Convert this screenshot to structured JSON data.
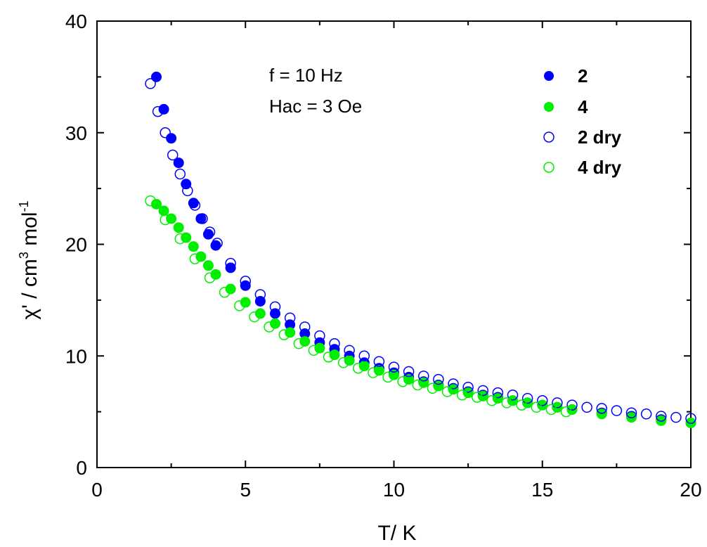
{
  "chart_data": {
    "type": "scatter",
    "xlabel": "T/ K",
    "ylabel_main": "χ' / cm",
    "ylabel_sup1": "3",
    "ylabel_mid": " mol",
    "ylabel_sup2": "-1",
    "xlim": [
      0,
      20
    ],
    "ylim": [
      0,
      40
    ],
    "xticks": [
      0,
      5,
      10,
      15,
      20
    ],
    "yticks": [
      0,
      10,
      20,
      30,
      40
    ],
    "grid": false,
    "legend_position": "top-right",
    "annotations": [
      "f = 10 Hz",
      "Hac = 3 Oe"
    ],
    "series": [
      {
        "name": "2",
        "color": "#0000ff",
        "marker": "filled-circle",
        "x": [
          2.0,
          2.25,
          2.5,
          2.75,
          3.0,
          3.25,
          3.5,
          3.75,
          4.0,
          4.5,
          5.0,
          5.5,
          6.0,
          6.5,
          7.0,
          7.5,
          8.0,
          8.5,
          9.0,
          9.5,
          10.0,
          10.5,
          11.0,
          11.5,
          12.0,
          12.5,
          13.0,
          13.5,
          14.0,
          14.5,
          15.0,
          15.5,
          16.0,
          17.0,
          18.0,
          19.0,
          20.0
        ],
        "y": [
          35.0,
          32.1,
          29.5,
          27.3,
          25.4,
          23.7,
          22.3,
          20.9,
          19.9,
          17.9,
          16.3,
          14.9,
          13.8,
          12.8,
          12.0,
          11.2,
          10.6,
          10.0,
          9.4,
          8.9,
          8.5,
          8.1,
          7.7,
          7.4,
          7.1,
          6.8,
          6.5,
          6.3,
          6.0,
          5.8,
          5.6,
          5.4,
          5.2,
          4.9,
          4.6,
          4.3,
          4.0
        ]
      },
      {
        "name": "4",
        "color": "#00ee00",
        "marker": "filled-circle",
        "x": [
          2.0,
          2.25,
          2.5,
          2.75,
          3.0,
          3.25,
          3.5,
          3.75,
          4.0,
          4.5,
          5.0,
          5.5,
          6.0,
          6.5,
          7.0,
          7.5,
          8.0,
          8.5,
          9.0,
          9.5,
          10.0,
          10.5,
          11.0,
          11.5,
          12.0,
          12.5,
          13.0,
          13.5,
          14.0,
          14.5,
          15.0,
          15.5,
          16.0,
          17.0,
          18.0,
          19.0,
          20.0
        ],
        "y": [
          23.6,
          23.0,
          22.3,
          21.5,
          20.6,
          19.8,
          18.9,
          18.1,
          17.3,
          16.0,
          14.8,
          13.8,
          12.9,
          12.1,
          11.3,
          10.7,
          10.1,
          9.6,
          9.1,
          8.7,
          8.3,
          7.9,
          7.6,
          7.3,
          7.0,
          6.7,
          6.4,
          6.2,
          6.0,
          5.8,
          5.6,
          5.4,
          5.2,
          4.8,
          4.5,
          4.2,
          4.0
        ]
      },
      {
        "name": "2 dry",
        "color": "#0000ff",
        "marker": "open-circle",
        "x": [
          1.8,
          2.05,
          2.3,
          2.55,
          2.8,
          3.05,
          3.3,
          3.55,
          3.8,
          4.05,
          4.5,
          5.0,
          5.5,
          6.0,
          6.5,
          7.0,
          7.5,
          8.0,
          8.5,
          9.0,
          9.5,
          10.0,
          10.5,
          11.0,
          11.5,
          12.0,
          12.5,
          13.0,
          13.5,
          14.0,
          14.5,
          15.0,
          15.5,
          16.0,
          16.5,
          17.0,
          17.5,
          18.0,
          18.5,
          19.0,
          19.5,
          20.0
        ],
        "y": [
          34.4,
          31.9,
          30.0,
          28.0,
          26.3,
          24.8,
          23.5,
          22.3,
          21.1,
          20.1,
          18.3,
          16.7,
          15.5,
          14.4,
          13.4,
          12.6,
          11.8,
          11.1,
          10.5,
          10.0,
          9.5,
          9.0,
          8.6,
          8.2,
          7.9,
          7.5,
          7.2,
          6.9,
          6.7,
          6.5,
          6.2,
          6.0,
          5.8,
          5.6,
          5.4,
          5.3,
          5.1,
          4.9,
          4.8,
          4.6,
          4.5,
          4.4
        ]
      },
      {
        "name": "4 dry",
        "color": "#00ee00",
        "marker": "open-circle",
        "x": [
          1.8,
          2.3,
          2.8,
          3.3,
          3.8,
          4.3,
          4.8,
          5.3,
          5.8,
          6.3,
          6.8,
          7.3,
          7.8,
          8.3,
          8.8,
          9.3,
          9.8,
          10.3,
          10.8,
          11.3,
          11.8,
          12.3,
          12.8,
          13.3,
          13.8,
          14.3,
          14.8,
          15.3,
          15.8
        ],
        "y": [
          23.9,
          22.2,
          20.5,
          18.7,
          17.0,
          15.7,
          14.5,
          13.5,
          12.6,
          11.9,
          11.1,
          10.5,
          9.9,
          9.4,
          8.9,
          8.5,
          8.1,
          7.7,
          7.4,
          7.1,
          6.8,
          6.5,
          6.3,
          6.0,
          5.8,
          5.6,
          5.4,
          5.2,
          5.0
        ]
      }
    ]
  }
}
